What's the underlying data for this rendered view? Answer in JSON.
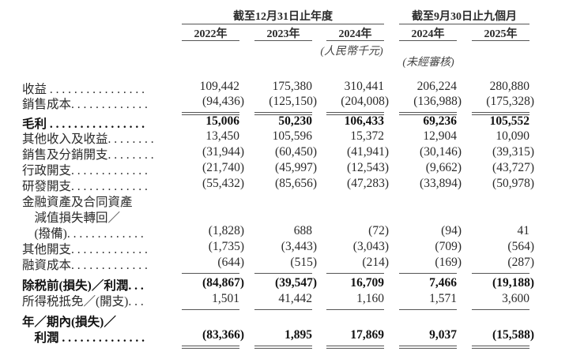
{
  "headers": {
    "group1": "截至12月31日止年度",
    "group2": "截至9月30日止九個月",
    "years": [
      "2022年",
      "2023年",
      "2024年",
      "2024年",
      "2025年"
    ],
    "currency_note": "(人民幣千元)",
    "unaudited_note": "(未經審核)"
  },
  "rows": [
    {
      "label": [
        "收益 . . . . . . . . . . . . . . . ."
      ],
      "values": [
        "109,442",
        "175,380",
        "310,441",
        "206,224",
        "280,880"
      ],
      "bold": false
    },
    {
      "label": [
        "銷售成本. . . . . . . . . . . . ."
      ],
      "values": [
        "(94,436)",
        "(125,150)",
        "(204,008)",
        "(136,988)",
        "(175,328)"
      ],
      "bold": false,
      "rule": "double"
    },
    {
      "label": [
        "毛利 . . . . . . . . . . . . . . . ."
      ],
      "values": [
        "15,006",
        "50,230",
        "106,433",
        "69,236",
        "105,552"
      ],
      "bold": true
    },
    {
      "label": [
        "其他收入及收益. . . . . . . ."
      ],
      "values": [
        "13,450",
        "105,596",
        "15,372",
        "12,904",
        "10,090"
      ],
      "bold": false
    },
    {
      "label": [
        "銷售及分銷開支. . . . . . . ."
      ],
      "values": [
        "(31,944)",
        "(60,450)",
        "(41,941)",
        "(30,146)",
        "(39,315)"
      ],
      "bold": false
    },
    {
      "label": [
        "行政開支. . . . . . . . . . . . ."
      ],
      "values": [
        "(21,740)",
        "(45,997)",
        "(12,543)",
        "(9,662)",
        "(43,727)"
      ],
      "bold": false
    },
    {
      "label": [
        "研發開支. . . . . . . . . . . . ."
      ],
      "values": [
        "(55,432)",
        "(85,656)",
        "(47,283)",
        "(33,894)",
        "(50,978)"
      ],
      "bold": false
    },
    {
      "label": [
        "金融資產及合同資產",
        "　減值損失轉回／",
        "　(撥備). . . . . . . . . . . . ."
      ],
      "values": [
        "(1,828)",
        "688",
        "(72)",
        "(94)",
        "41"
      ],
      "bold": false
    },
    {
      "label": [
        "其他開支. . . . . . . . . . . . ."
      ],
      "values": [
        "(1,735)",
        "(3,443)",
        "(3,043)",
        "(709)",
        "(564)"
      ],
      "bold": false
    },
    {
      "label": [
        "融資成本. . . . . . . . . . . . ."
      ],
      "values": [
        "(644)",
        "(515)",
        "(214)",
        "(169)",
        "(287)"
      ],
      "bold": false,
      "rule": "single"
    },
    {
      "label": [
        "除税前(損失)／利潤. . ."
      ],
      "values": [
        "(84,867)",
        "(39,547)",
        "16,709",
        "7,466",
        "(19,188)"
      ],
      "bold": true
    },
    {
      "label": [
        "所得税抵免／(開支). . ."
      ],
      "values": [
        "1,501",
        "41,442",
        "1,160",
        "1,571",
        "3,600"
      ],
      "bold": false,
      "rule": "single"
    },
    {
      "label": [
        "年／期內(損失)／",
        "　利潤 . . . . . . . . . . . . . ."
      ],
      "values": [
        "(83,366)",
        "1,895",
        "17,869",
        "9,037",
        "(15,588)"
      ],
      "bold": true,
      "rule": "double"
    }
  ]
}
